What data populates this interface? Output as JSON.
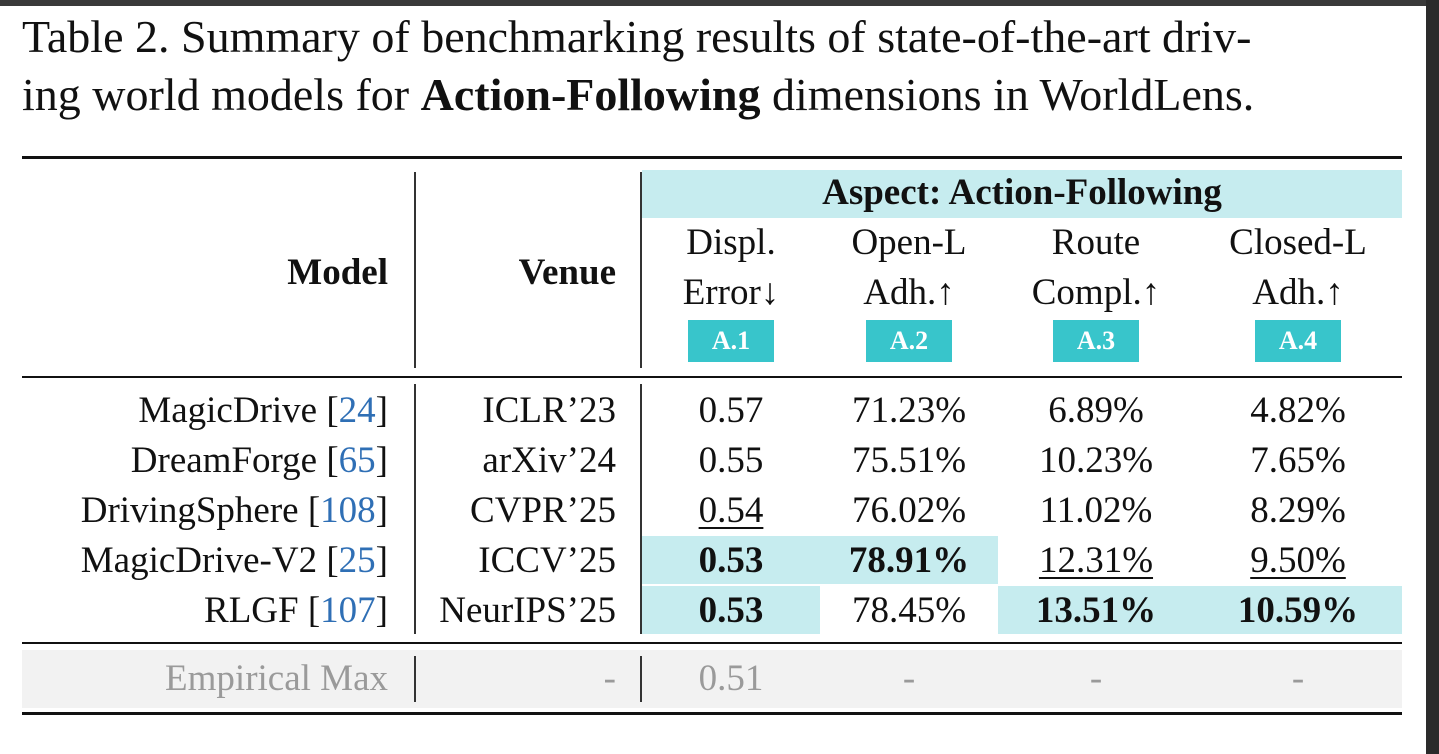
{
  "caption": {
    "line1": "Table 2. Summary of benchmarking results of state-of-the-art driv-",
    "line2_pre": "ing world models for ",
    "line2_bold": "Action-Following",
    "line2_post": " dimensions in WorldLens."
  },
  "header": {
    "model": "Model",
    "venue": "Venue",
    "aspect": "Aspect: Action-Following",
    "columns": [
      {
        "line1": "Displ.",
        "line2": "Error↓",
        "badge": "A.1"
      },
      {
        "line1": "Open-L",
        "line2": "Adh.↑",
        "badge": "A.2"
      },
      {
        "line1": "Route",
        "line2": "Compl.↑",
        "badge": "A.3"
      },
      {
        "line1": "Closed-L",
        "line2": "Adh.↑",
        "badge": "A.4"
      }
    ]
  },
  "rows": [
    {
      "model": "MagicDrive [",
      "ref": "24",
      "close": "]",
      "venue": "ICLR’23",
      "values": [
        "0.57",
        "71.23%",
        "6.89%",
        "4.82%"
      ]
    },
    {
      "model": "DreamForge [",
      "ref": "65",
      "close": "]",
      "venue": "arXiv’24",
      "values": [
        "0.55",
        "75.51%",
        "10.23%",
        "7.65%"
      ]
    },
    {
      "model": "DrivingSphere [",
      "ref": "108",
      "close": "]",
      "venue": "CVPR’25",
      "values": [
        "0.54",
        "76.02%",
        "11.02%",
        "8.29%"
      ]
    },
    {
      "model": "MagicDrive-V2 [",
      "ref": "25",
      "close": "]",
      "venue": "ICCV’25",
      "values": [
        "0.53",
        "78.91%",
        "12.31%",
        "9.50%"
      ]
    },
    {
      "model": "RLGF [",
      "ref": "107",
      "close": "]",
      "venue": "NeurIPS’25",
      "values": [
        "0.53",
        "78.45%",
        "13.51%",
        "10.59%"
      ]
    }
  ],
  "empirical": {
    "model": "Empirical Max",
    "venue": "-",
    "values": [
      "0.51",
      "-",
      "-",
      "-"
    ]
  },
  "colors": {
    "highlight": "#c6ecef",
    "badge": "#38c5cb",
    "ref": "#2f6fb5",
    "grey": "#9a9a9a"
  }
}
